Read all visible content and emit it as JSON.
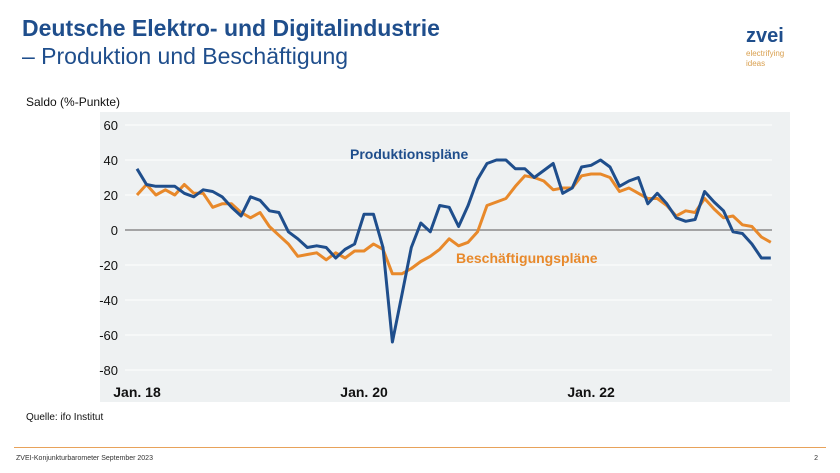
{
  "header": {
    "title_line1": "Deutsche Elektro- und Digitalindustrie",
    "title_line2": "– Produktion und Beschäftigung"
  },
  "logo": {
    "brand": "zvei",
    "tagline1": "electrifying",
    "tagline2": "ideas"
  },
  "source": "Quelle: ifo Institut",
  "footer": {
    "text": "ZVEI-Konjunkturbarometer September 2023",
    "page": "2"
  },
  "colors": {
    "produktion": "#1f4e8c",
    "beschaeftigung": "#e8892b",
    "plot_bg": "#eef1f2"
  },
  "chart_data": {
    "type": "line",
    "ylabel": "Saldo (%-Punkte)",
    "ylim": [
      -80,
      60
    ],
    "yticks": [
      60,
      40,
      20,
      0,
      -20,
      -40,
      -60,
      -80
    ],
    "x_start": "2018-01",
    "x_end": "2023-08",
    "x_frequency": "monthly",
    "xtick_labels": [
      {
        "label": "Jan. 18",
        "month_index": 0
      },
      {
        "label": "Jan. 20",
        "month_index": 24
      },
      {
        "label": "Jan. 22",
        "month_index": 48
      }
    ],
    "grid": true,
    "series": [
      {
        "name": "Produktionspläne",
        "color": "#1f4e8c",
        "values": [
          35,
          26,
          25,
          25,
          25,
          21,
          19,
          23,
          22,
          19,
          13,
          8,
          19,
          17,
          11,
          10,
          -1,
          -5,
          -10,
          -9,
          -10,
          -16,
          -11,
          -8,
          9,
          9,
          -10,
          -64,
          -37,
          -10,
          4,
          -1,
          14,
          13,
          2,
          14,
          29,
          38,
          40,
          40,
          35,
          35,
          30,
          34,
          38,
          21,
          24,
          36,
          37,
          40,
          36,
          25,
          28,
          30,
          15,
          21,
          15,
          7,
          5,
          6,
          22,
          16,
          11,
          -1,
          -2,
          -8,
          -16,
          -16
        ]
      },
      {
        "name": "Beschäftigungspläne",
        "color": "#e8892b",
        "values": [
          20,
          26,
          20,
          23,
          20,
          26,
          21,
          21,
          13,
          15,
          15,
          10,
          7,
          10,
          2,
          -3,
          -8,
          -15,
          -14,
          -13,
          -17,
          -13,
          -16,
          -12,
          -12,
          -8,
          -11,
          -25,
          -25,
          -22,
          -18,
          -15,
          -11,
          -5,
          -9,
          -7,
          -1,
          14,
          16,
          18,
          25,
          31,
          30,
          28,
          23,
          24,
          24,
          31,
          32,
          32,
          30,
          22,
          24,
          21,
          18,
          18,
          14,
          8,
          11,
          10,
          18,
          12,
          7,
          8,
          3,
          2,
          -4,
          -7
        ]
      }
    ]
  }
}
